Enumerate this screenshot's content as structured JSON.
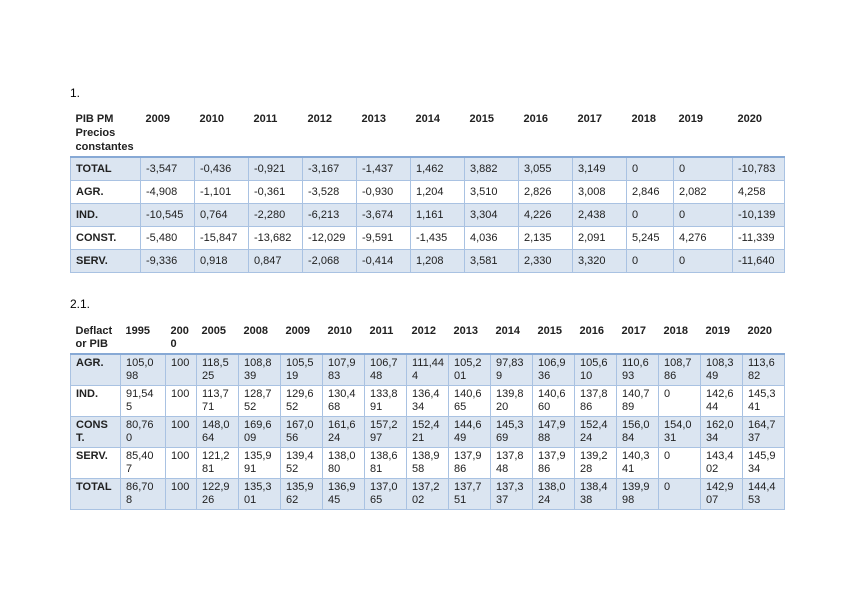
{
  "colors": {
    "band_fill": "#dbe5f1",
    "cell_border": "#a9c2e2",
    "header_rule": "#87a9d5"
  },
  "document": {
    "sections": [
      {
        "label": "1.",
        "table": {
          "header": [
            "PIB PM Precios constantes",
            "2009",
            "2010",
            "2011",
            "2012",
            "2013",
            "2014",
            "2015",
            "2016",
            "2017",
            "2018",
            "2019",
            "2020"
          ],
          "rows": [
            {
              "label": "TOTAL",
              "values": [
                "-3,547",
                "-0,436",
                "-0,921",
                "-3,167",
                "-1,437",
                "1,462",
                "3,882",
                "3,055",
                "3,149",
                "0",
                "0",
                "-10,783"
              ]
            },
            {
              "label": "AGR.",
              "values": [
                "-4,908",
                "-1,101",
                "-0,361",
                "-3,528",
                "-0,930",
                "1,204",
                "3,510",
                "2,826",
                "3,008",
                "2,846",
                "2,082",
                "4,258"
              ]
            },
            {
              "label": "IND.",
              "values": [
                "-10,545",
                "0,764",
                "-2,280",
                "-6,213",
                "-3,674",
                "1,161",
                "3,304",
                "4,226",
                "2,438",
                "0",
                "0",
                "-10,139"
              ]
            },
            {
              "label": "CONST.",
              "values": [
                "-5,480",
                "-15,847",
                "-13,682",
                "-12,029",
                "-9,591",
                "-1,435",
                "4,036",
                "2,135",
                "2,091",
                "5,245",
                "4,276",
                "-11,339"
              ]
            },
            {
              "label": "SERV.",
              "values": [
                "-9,336",
                "0,918",
                "0,847",
                "-2,068",
                "-0,414",
                "1,208",
                "3,581",
                "2,330",
                "3,320",
                "0",
                "0",
                "-11,640"
              ]
            }
          ]
        }
      },
      {
        "label": "2.1.",
        "table": {
          "header": [
            "Deflactor PIB",
            "1995",
            "2000",
            "2005",
            "2008",
            "2009",
            "2010",
            "2011",
            "2012",
            "2013",
            "2014",
            "2015",
            "2016",
            "2017",
            "2018",
            "2019",
            "2020"
          ],
          "rows": [
            {
              "label": "AGR.",
              "values": [
                "105,098",
                "100",
                "118,525",
                "108,839",
                "105,519",
                "107,983",
                "106,748",
                "111,444",
                "105,201",
                "97,839",
                "106,936",
                "105,610",
                "110,693",
                "108,786",
                "108,349",
                "113,682"
              ]
            },
            {
              "label": "IND.",
              "values": [
                "91,545",
                "100",
                "113,771",
                "128,752",
                "129,652",
                "130,468",
                "133,891",
                "136,434",
                "140,665",
                "139,820",
                "140,660",
                "137,886",
                "140,789",
                "0",
                "142,644",
                "145,341"
              ]
            },
            {
              "label": "CONST.",
              "values": [
                "80,760",
                "100",
                "148,064",
                "169,609",
                "167,056",
                "161,624",
                "157,297",
                "152,421",
                "144,649",
                "145,369",
                "147,988",
                "152,424",
                "156,084",
                "154,031",
                "162,034",
                "164,737"
              ]
            },
            {
              "label": "SERV.",
              "values": [
                "85,407",
                "100",
                "121,281",
                "135,991",
                "139,452",
                "138,080",
                "138,681",
                "138,958",
                "137,986",
                "137,848",
                "137,986",
                "139,228",
                "140,341",
                "0",
                "143,402",
                "145,934"
              ]
            },
            {
              "label": "TOTAL",
              "values": [
                "86,708",
                "100",
                "122,926",
                "135,301",
                "135,962",
                "136,945",
                "137,065",
                "137,202",
                "137,751",
                "137,337",
                "138,024",
                "138,438",
                "139,998",
                "0",
                "142,907",
                "144,453"
              ]
            }
          ]
        }
      }
    ]
  }
}
